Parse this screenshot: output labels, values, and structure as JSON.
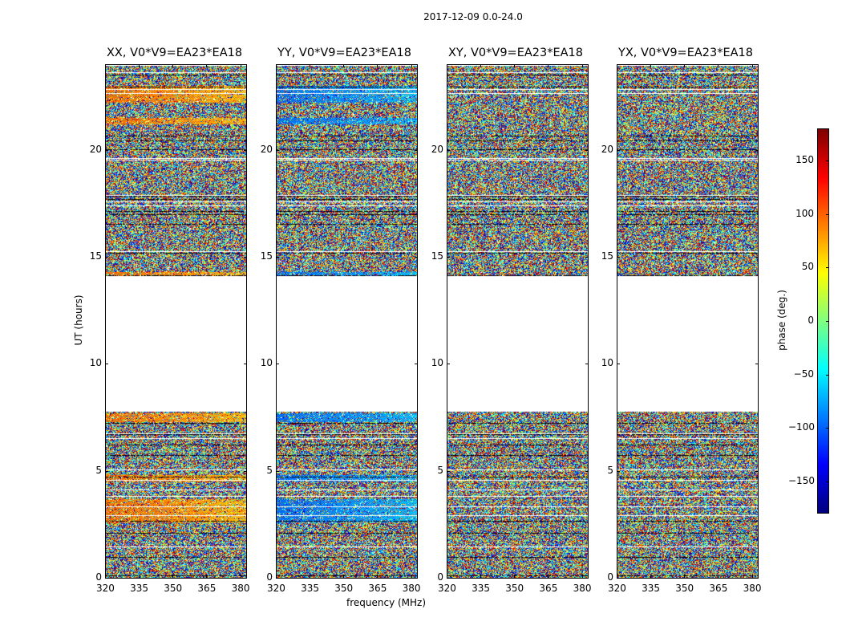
{
  "figure": {
    "suptitle": "2017-12-09 0.0-24.0"
  },
  "chart_data": {
    "type": "heatmap",
    "xlabel": "frequency (MHz)",
    "ylabel": "UT (hours)",
    "xlim": [
      320,
      383
    ],
    "ylim": [
      0,
      24
    ],
    "x_ticks": [
      "320",
      "335",
      "350",
      "365",
      "380"
    ],
    "y_ticks": [
      "0",
      "5",
      "10",
      "15",
      "20"
    ],
    "x_tick_values": [
      320,
      335,
      350,
      365,
      380
    ],
    "y_tick_values": [
      0,
      5,
      10,
      15,
      20
    ],
    "panels": [
      {
        "title": "XX, V0*V9=EA23*EA18",
        "coherent": true,
        "phase_sign": 1
      },
      {
        "title": "YY, V0*V9=EA23*EA18",
        "coherent": true,
        "phase_sign": -1
      },
      {
        "title": "XY, V0*V9=EA23*EA18",
        "coherent": false,
        "phase_sign": 1
      },
      {
        "title": "YX, V0*V9=EA23*EA18",
        "coherent": false,
        "phase_sign": 1
      }
    ],
    "data_gaps_ut": [
      [
        7.8,
        14.1
      ]
    ],
    "colorbar": {
      "label": "phase (deg.)",
      "range": [
        -180,
        180
      ],
      "ticks": [
        "150",
        "100",
        "50",
        "0",
        "−50",
        "−100",
        "−150"
      ],
      "tick_values": [
        150,
        100,
        50,
        0,
        -50,
        -100,
        -150
      ],
      "colormap": "jet"
    }
  }
}
